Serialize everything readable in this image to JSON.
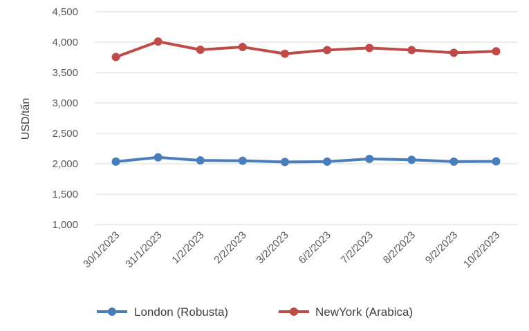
{
  "chart_data": {
    "type": "line",
    "title": "",
    "xlabel": "",
    "ylabel": "USD/tấn",
    "ylim": [
      1000,
      4500
    ],
    "yticks": [
      1000,
      1500,
      2000,
      2500,
      3000,
      3500,
      4000,
      4500
    ],
    "ytick_labels": [
      "1,000",
      "1,500",
      "2,000",
      "2,500",
      "3,000",
      "3,500",
      "4,000",
      "4,500"
    ],
    "grid": true,
    "legend_position": "bottom",
    "categories": [
      "30/1/2023",
      "31/1/2023",
      "1/2/2023",
      "2/2/2023",
      "3/2/2023",
      "6/2/2023",
      "7/2/2023",
      "8/2/2023",
      "9/2/2023",
      "10/2/2023"
    ],
    "series": [
      {
        "name": "London (Robusta)",
        "color": "#4a7ebb",
        "values": [
          2035,
          2105,
          2055,
          2050,
          2030,
          2035,
          2080,
          2065,
          2035,
          2040
        ]
      },
      {
        "name": "NewYork (Arabica)",
        "color": "#be4b48",
        "values": [
          3755,
          4010,
          3875,
          3920,
          3810,
          3870,
          3905,
          3870,
          3825,
          3850
        ]
      }
    ]
  }
}
